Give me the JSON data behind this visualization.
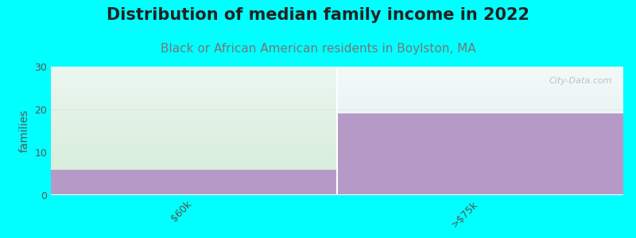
{
  "title": "Distribution of median family income in 2022",
  "subtitle": "Black or African American residents in Boylston, MA",
  "categories": [
    "$60k",
    ">$75k"
  ],
  "bar_values": [
    6,
    19
  ],
  "bar_color": "#b59ac8",
  "area_color_left_bottom": "#ddeedd",
  "area_color_left_top": "#f8fdf8",
  "ylabel": "families",
  "ylim": [
    0,
    30
  ],
  "yticks": [
    0,
    10,
    20,
    30
  ],
  "background_color": "#00ffff",
  "plot_bg_color": "#f0faf8",
  "title_fontsize": 15,
  "subtitle_fontsize": 11,
  "subtitle_color": "#777777",
  "tick_label_color": "#555555",
  "axis_label_color": "#555555",
  "watermark": "City-Data.com"
}
